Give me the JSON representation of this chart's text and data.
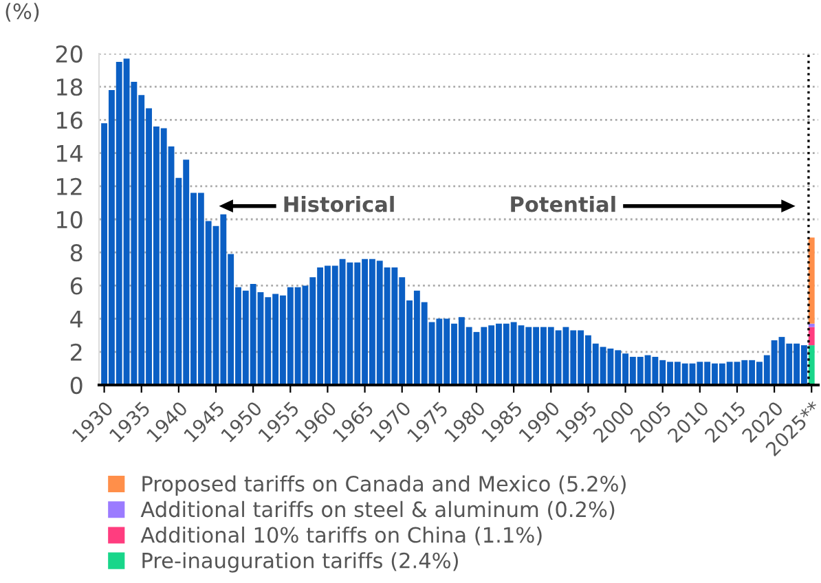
{
  "chart_data": {
    "type": "bar",
    "ylabel": "(%)",
    "stacked": true,
    "x": [
      1930,
      1931,
      1932,
      1933,
      1934,
      1935,
      1936,
      1937,
      1938,
      1939,
      1940,
      1941,
      1942,
      1943,
      1944,
      1945,
      1946,
      1947,
      1948,
      1949,
      1950,
      1951,
      1952,
      1953,
      1954,
      1955,
      1956,
      1957,
      1958,
      1959,
      1960,
      1961,
      1962,
      1963,
      1964,
      1965,
      1966,
      1967,
      1968,
      1969,
      1970,
      1971,
      1972,
      1973,
      1974,
      1975,
      1976,
      1977,
      1978,
      1979,
      1980,
      1981,
      1982,
      1983,
      1984,
      1985,
      1986,
      1987,
      1988,
      1989,
      1990,
      1991,
      1992,
      1993,
      1994,
      1995,
      1996,
      1997,
      1998,
      1999,
      2000,
      2001,
      2002,
      2003,
      2004,
      2005,
      2006,
      2007,
      2008,
      2009,
      2010,
      2011,
      2012,
      2013,
      2014,
      2015,
      2016,
      2017,
      2018,
      2019,
      2020,
      2021,
      2022,
      2023,
      2024,
      2025
    ],
    "series": [
      {
        "color": "#0b5fc4",
        "values": [
          15.8,
          17.8,
          19.5,
          19.7,
          18.3,
          17.5,
          16.7,
          15.6,
          15.5,
          14.4,
          12.5,
          13.6,
          11.6,
          11.6,
          9.9,
          9.6,
          10.3,
          7.9,
          5.9,
          5.7,
          6.1,
          5.6,
          5.3,
          5.5,
          5.4,
          5.9,
          5.9,
          6.0,
          6.5,
          7.1,
          7.2,
          7.2,
          7.6,
          7.4,
          7.4,
          7.6,
          7.6,
          7.5,
          7.1,
          7.1,
          6.5,
          5.1,
          5.7,
          5.0,
          3.8,
          4.0,
          4.0,
          3.7,
          4.1,
          3.5,
          3.2,
          3.5,
          3.6,
          3.7,
          3.7,
          3.8,
          3.6,
          3.5,
          3.5,
          3.5,
          3.5,
          3.3,
          3.5,
          3.3,
          3.3,
          3.0,
          2.5,
          2.3,
          2.2,
          2.1,
          1.9,
          1.7,
          1.7,
          1.8,
          1.7,
          1.5,
          1.4,
          1.4,
          1.3,
          1.3,
          1.4,
          1.4,
          1.3,
          1.3,
          1.4,
          1.4,
          1.5,
          1.5,
          1.4,
          1.8,
          2.7,
          2.9,
          2.5,
          2.5,
          2.4,
          null
        ]
      },
      {
        "name": "Pre-inauguration tariffs (2.4%)",
        "color": "#19d68a",
        "values": [
          null,
          null,
          null,
          null,
          null,
          null,
          null,
          null,
          null,
          null,
          null,
          null,
          null,
          null,
          null,
          null,
          null,
          null,
          null,
          null,
          null,
          null,
          null,
          null,
          null,
          null,
          null,
          null,
          null,
          null,
          null,
          null,
          null,
          null,
          null,
          null,
          null,
          null,
          null,
          null,
          null,
          null,
          null,
          null,
          null,
          null,
          null,
          null,
          null,
          null,
          null,
          null,
          null,
          null,
          null,
          null,
          null,
          null,
          null,
          null,
          null,
          null,
          null,
          null,
          null,
          null,
          null,
          null,
          null,
          null,
          null,
          null,
          null,
          null,
          null,
          null,
          null,
          null,
          null,
          null,
          null,
          null,
          null,
          null,
          null,
          null,
          null,
          null,
          null,
          null,
          null,
          null,
          null,
          null,
          null,
          2.4
        ]
      },
      {
        "name": "Additional 10% tariffs on China (1.1%)",
        "color": "#ff3d7f",
        "values": [
          null,
          null,
          null,
          null,
          null,
          null,
          null,
          null,
          null,
          null,
          null,
          null,
          null,
          null,
          null,
          null,
          null,
          null,
          null,
          null,
          null,
          null,
          null,
          null,
          null,
          null,
          null,
          null,
          null,
          null,
          null,
          null,
          null,
          null,
          null,
          null,
          null,
          null,
          null,
          null,
          null,
          null,
          null,
          null,
          null,
          null,
          null,
          null,
          null,
          null,
          null,
          null,
          null,
          null,
          null,
          null,
          null,
          null,
          null,
          null,
          null,
          null,
          null,
          null,
          null,
          null,
          null,
          null,
          null,
          null,
          null,
          null,
          null,
          null,
          null,
          null,
          null,
          null,
          null,
          null,
          null,
          null,
          null,
          null,
          null,
          null,
          null,
          null,
          null,
          null,
          null,
          null,
          null,
          null,
          null,
          1.1
        ]
      },
      {
        "name": "Additional tariffs on steel & aluminum (0.2%)",
        "color": "#9b7bff",
        "values": [
          null,
          null,
          null,
          null,
          null,
          null,
          null,
          null,
          null,
          null,
          null,
          null,
          null,
          null,
          null,
          null,
          null,
          null,
          null,
          null,
          null,
          null,
          null,
          null,
          null,
          null,
          null,
          null,
          null,
          null,
          null,
          null,
          null,
          null,
          null,
          null,
          null,
          null,
          null,
          null,
          null,
          null,
          null,
          null,
          null,
          null,
          null,
          null,
          null,
          null,
          null,
          null,
          null,
          null,
          null,
          null,
          null,
          null,
          null,
          null,
          null,
          null,
          null,
          null,
          null,
          null,
          null,
          null,
          null,
          null,
          null,
          null,
          null,
          null,
          null,
          null,
          null,
          null,
          null,
          null,
          null,
          null,
          null,
          null,
          null,
          null,
          null,
          null,
          null,
          null,
          null,
          null,
          null,
          null,
          null,
          0.2
        ]
      },
      {
        "name": "Proposed tariffs on Canada and Mexico (5.2%)",
        "color": "#ff8f4a",
        "values": [
          null,
          null,
          null,
          null,
          null,
          null,
          null,
          null,
          null,
          null,
          null,
          null,
          null,
          null,
          null,
          null,
          null,
          null,
          null,
          null,
          null,
          null,
          null,
          null,
          null,
          null,
          null,
          null,
          null,
          null,
          null,
          null,
          null,
          null,
          null,
          null,
          null,
          null,
          null,
          null,
          null,
          null,
          null,
          null,
          null,
          null,
          null,
          null,
          null,
          null,
          null,
          null,
          null,
          null,
          null,
          null,
          null,
          null,
          null,
          null,
          null,
          null,
          null,
          null,
          null,
          null,
          null,
          null,
          null,
          null,
          null,
          null,
          null,
          null,
          null,
          null,
          null,
          null,
          null,
          null,
          null,
          null,
          null,
          null,
          null,
          null,
          null,
          null,
          null,
          null,
          null,
          null,
          null,
          null,
          null,
          5.2
        ]
      }
    ],
    "xlim": [
      1929.3,
      2025.9
    ],
    "xticks": [
      1930,
      1935,
      1940,
      1945,
      1950,
      1955,
      1960,
      1965,
      1970,
      1975,
      1980,
      1985,
      1990,
      1995,
      2000,
      2005,
      2010,
      2015,
      2020,
      {
        "value": 2025,
        "label": "2025**"
      }
    ],
    "ylim": [
      0,
      20
    ],
    "yticks": [
      0,
      2,
      4,
      6,
      8,
      10,
      12,
      14,
      16,
      18,
      20
    ],
    "grid": "y",
    "legend": "bottom left",
    "ref_lines": [
      {
        "axis": "x",
        "value": 2024.6,
        "color": "#000000",
        "line_style": "dotted"
      }
    ],
    "annotations": [
      "Historical",
      "Potential"
    ]
  }
}
